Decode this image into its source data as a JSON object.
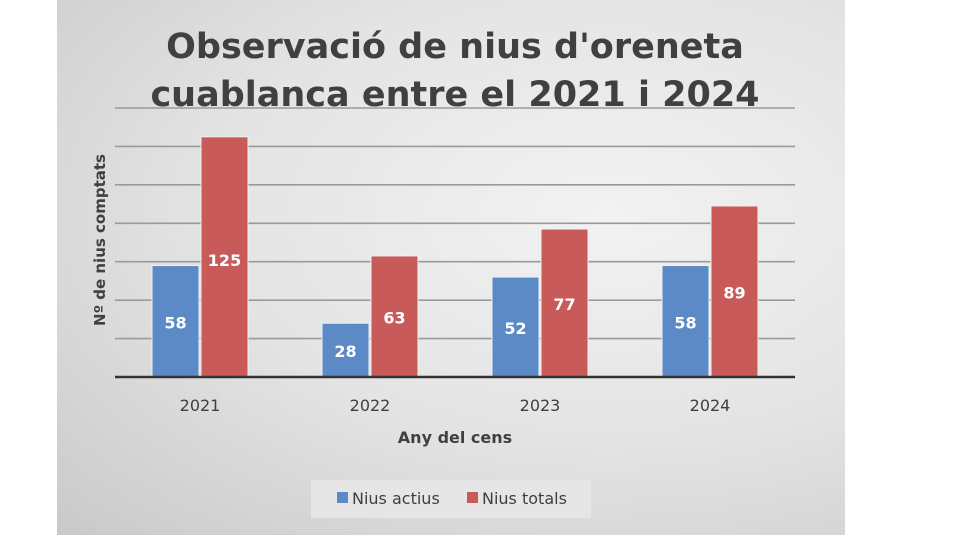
{
  "chart_data": {
    "type": "bar",
    "title": [
      "Observació de nius d'oreneta",
      "cuablanca entre el 2021 i 2024"
    ],
    "xlabel": "Any del cens",
    "ylabel": "Nº de nius comptats",
    "categories": [
      "2021",
      "2022",
      "2023",
      "2024"
    ],
    "series": [
      {
        "name": "Nius actius",
        "values": [
          58,
          28,
          52,
          58
        ],
        "color": "#5b8ac6"
      },
      {
        "name": "Nius totals",
        "values": [
          125,
          63,
          77,
          89
        ],
        "color": "#c85a5a"
      }
    ],
    "ylim": [
      0,
      140
    ],
    "ytick_step": 20,
    "y_tick_labels_shown": false,
    "grid": true,
    "data_labels": true,
    "legend": "bottom"
  }
}
